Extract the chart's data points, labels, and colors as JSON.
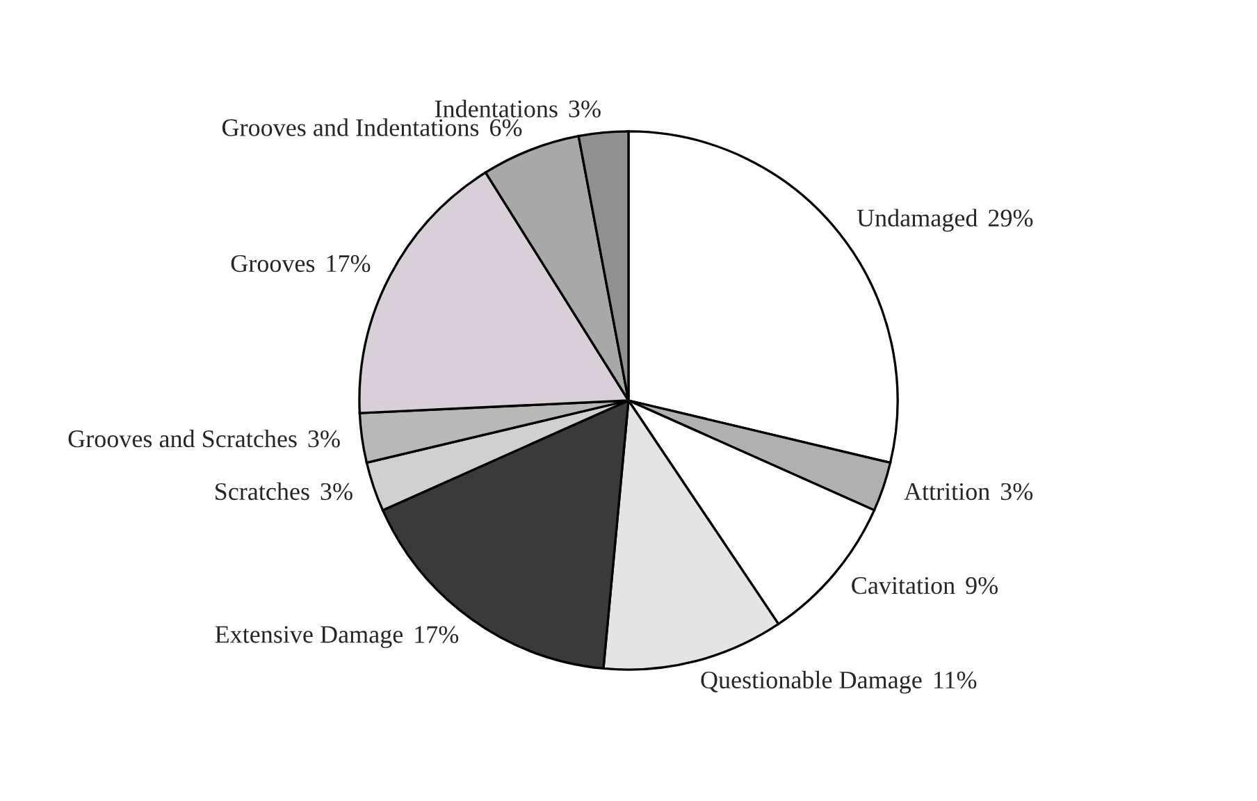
{
  "chart_data": {
    "type": "pie",
    "categories": [
      "Undamaged",
      "Attrition",
      "Cavitation",
      "Questionable Damage",
      "Extensive Damage",
      "Scratches",
      "Grooves and Scratches",
      "Grooves",
      "Grooves and Indentations",
      "Indentations"
    ],
    "values": [
      29,
      3,
      9,
      11,
      17,
      3,
      3,
      17,
      6,
      3
    ],
    "colors": [
      "#ffffff",
      "#b0b0b0",
      "#ffffff",
      "#e4e4e4",
      "#3a3a3a",
      "#d0d0d0",
      "#b8b8b8",
      "#d8cfd8",
      "#a8a8a8",
      "#909090"
    ],
    "value_labels": [
      "29%",
      "3%",
      "9%",
      "11%",
      "17%",
      "3%",
      "3%",
      "17%",
      "6%",
      "3%"
    ]
  }
}
